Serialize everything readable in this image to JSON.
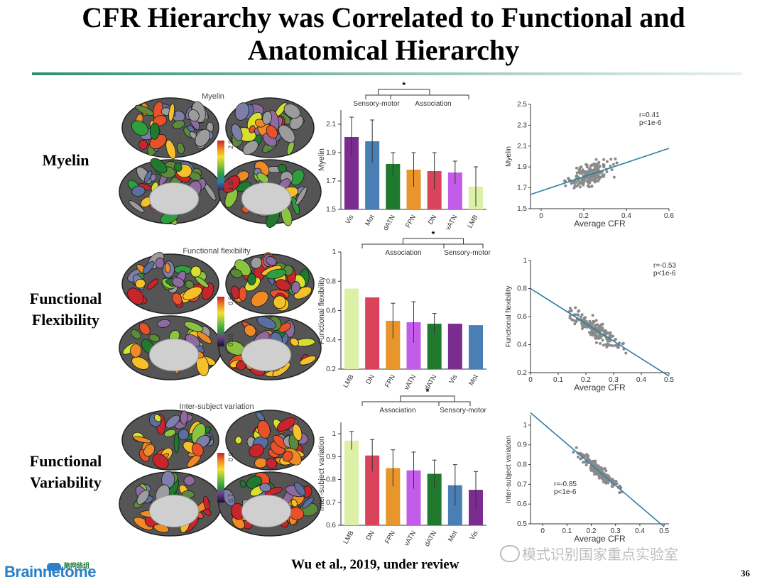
{
  "slide": {
    "title_line1": "CFR Hierarchy was Correlated to Functional and",
    "title_line2": "Anatomical Hierarchy",
    "citation": "Wu et al., 2019, under review",
    "page_number": "36",
    "logo_text": "Brainnetome",
    "logo_sub": "脑网络组",
    "watermark": "模式识别国家重点实验室"
  },
  "rows": [
    {
      "label_line1": "Myelin",
      "label_line2": "",
      "brain_title": "Myelin",
      "scale_max": "2.06",
      "scale_min": "1.57"
    },
    {
      "label_line1": "Functional",
      "label_line2": "Flexibility",
      "brain_title": "Functional flexibility",
      "scale_max": "0.69",
      "scale_min": "0.30"
    },
    {
      "label_line1": "Functional",
      "label_line2": "Variability",
      "brain_title": "Inter-subject variation",
      "scale_max": "0.9",
      "scale_min": "0.7"
    }
  ],
  "colors": {
    "Vis": "#7b2c8f",
    "Mot": "#4a7fb5",
    "dATN": "#1f7a2e",
    "FPN": "#e8952b",
    "DN": "#d9445a",
    "vATN": "#c35ce8",
    "LMB": "#dcf0a6",
    "fit_line": "#2e7fa6",
    "scatter_point": "#8a8a8a"
  },
  "chart_data": [
    {
      "type": "bar",
      "categories": [
        "Vis",
        "Mot",
        "dATN",
        "FPN",
        "DN",
        "vATN",
        "LMB"
      ],
      "values": [
        2.01,
        1.98,
        1.82,
        1.78,
        1.77,
        1.76,
        1.66
      ],
      "errors": [
        0.14,
        0.15,
        0.08,
        0.12,
        0.13,
        0.08,
        0.14
      ],
      "ylabel": "Myelin",
      "ylim": [
        1.5,
        2.2
      ],
      "yticks": [
        "1.5",
        "1.7",
        "1.9",
        "2.1"
      ],
      "groups": [
        "Sensory-motor",
        "Association"
      ],
      "significance": "*"
    },
    {
      "type": "scatter",
      "xlabel": "Average CFR",
      "ylabel": "Myelin",
      "xlim": [
        -0.05,
        0.6
      ],
      "ylim": [
        1.5,
        2.5
      ],
      "xticks": [
        "0",
        "0.2",
        "0.4",
        "0.6"
      ],
      "yticks": [
        "1.5",
        "1.7",
        "1.9",
        "2.1",
        "2.3",
        "2.5"
      ],
      "r_label": "r=0.41",
      "p_label": "p<1e-6",
      "fit": {
        "slope": 0.68,
        "intercept": 1.67
      },
      "n_points": 180
    },
    {
      "type": "bar",
      "categories": [
        "LMB",
        "DN",
        "FPN",
        "vATN",
        "dATN",
        "Vis",
        "Mot"
      ],
      "values": [
        0.75,
        0.69,
        0.53,
        0.52,
        0.51,
        0.51,
        0.5
      ],
      "errors": [
        0.0,
        0.0,
        0.12,
        0.14,
        0.07,
        0.0,
        0.0
      ],
      "ylabel": "Functional flexibility",
      "ylim": [
        0.2,
        1.0
      ],
      "yticks": [
        "0.2",
        "0.4",
        "0.6",
        "0.8",
        "1"
      ],
      "groups": [
        "Association",
        "Sensory-motor"
      ],
      "significance": "*"
    },
    {
      "type": "scatter",
      "xlabel": "Average CFR",
      "ylabel": "Functional flexibility",
      "xlim": [
        0,
        0.5
      ],
      "ylim": [
        0.2,
        1.0
      ],
      "xticks": [
        "0",
        "0.1",
        "0.2",
        "0.3",
        "0.4",
        "0.5"
      ],
      "yticks": [
        "0.2",
        "0.4",
        "0.6",
        "0.8",
        "1"
      ],
      "r_label": "r=-0.53",
      "p_label": "p<1e-6",
      "fit": {
        "slope": -1.25,
        "intercept": 0.8
      },
      "n_points": 180
    },
    {
      "type": "bar",
      "categories": [
        "LMB",
        "DN",
        "FPN",
        "vATN",
        "dATN",
        "Mot",
        "Vis"
      ],
      "values": [
        0.97,
        0.905,
        0.85,
        0.84,
        0.825,
        0.775,
        0.755
      ],
      "errors": [
        0.04,
        0.07,
        0.08,
        0.08,
        0.06,
        0.09,
        0.08
      ],
      "ylabel": "Inter-subject variation",
      "ylim": [
        0.6,
        1.05
      ],
      "yticks": [
        "0.6",
        "0.7",
        "0.8",
        "0.9",
        "1"
      ],
      "groups": [
        "Association",
        "Sensory-motor"
      ],
      "significance": "*"
    },
    {
      "type": "scatter",
      "xlabel": "Average CFR",
      "ylabel": "Inter-subject variation",
      "xlim": [
        -0.05,
        0.52
      ],
      "ylim": [
        0.5,
        1.05
      ],
      "xticks": [
        "0",
        "0.1",
        "0.2",
        "0.3",
        "0.4",
        "0.5"
      ],
      "yticks": [
        "0.5",
        "0.6",
        "0.7",
        "0.8",
        "0.9",
        "1"
      ],
      "r_label": "r=-0.85",
      "p_label": "p<1e-6",
      "fit": {
        "slope": -1.05,
        "intercept": 1.01
      },
      "n_points": 180
    }
  ]
}
